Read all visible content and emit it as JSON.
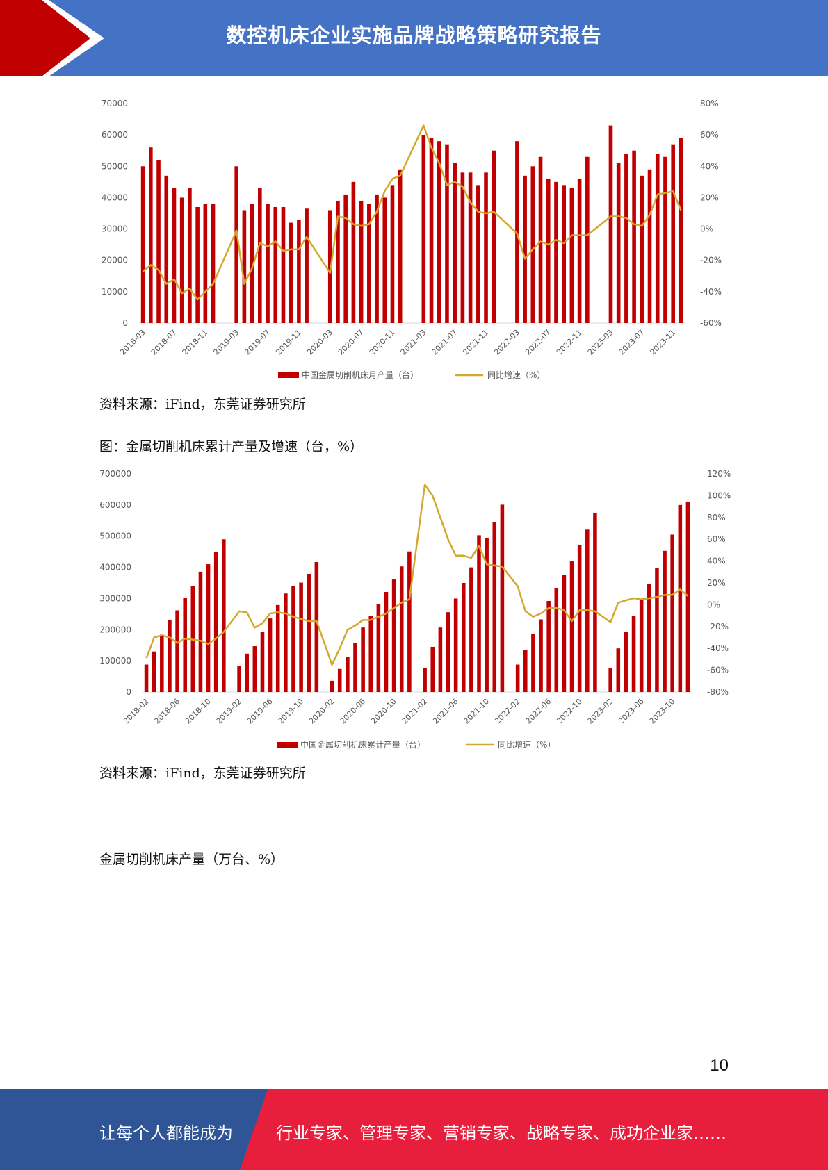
{
  "header": {
    "title": "数控机床企业实施品牌战略策略研究报告",
    "colors": {
      "blue": "#4472c4",
      "red": "#c00000"
    }
  },
  "charts": [
    {
      "type": "bar+line",
      "left_axis_ticks": [
        "70000",
        "60000",
        "50000",
        "40000",
        "30000",
        "20000",
        "10000",
        "0"
      ],
      "right_axis_ticks": [
        "80%",
        "60%",
        "40%",
        "20%",
        "0%",
        "-20%",
        "-40%",
        "-60%"
      ],
      "x_tick_labels": [
        "2018-03",
        "2018-07",
        "2018-11",
        "2019-03",
        "2019-07",
        "2019-11",
        "2020-03",
        "2020-07",
        "2020-11",
        "2021-03",
        "2021-07",
        "2021-11",
        "2022-03",
        "2022-07",
        "2022-11",
        "2023-03",
        "2023-07",
        "2023-11"
      ],
      "legend": [
        "中国金属切削机床月产量（台）",
        "同比增速（%）"
      ]
    },
    {
      "type": "bar+line",
      "left_axis_ticks": [
        "700000",
        "600000",
        "500000",
        "400000",
        "300000",
        "200000",
        "100000",
        "0"
      ],
      "right_axis_ticks": [
        "120%",
        "100%",
        "80%",
        "60%",
        "40%",
        "20%",
        "0%",
        "-20%",
        "-40%",
        "-60%",
        "-80%"
      ],
      "x_tick_labels": [
        "2018-02",
        "2018-06",
        "2018-10",
        "2019-02",
        "2019-06",
        "2019-10",
        "2020-02",
        "2020-06",
        "2020-10",
        "2021-02",
        "2021-06",
        "2021-10",
        "2022-02",
        "2022-06",
        "2022-10",
        "2023-02",
        "2023-06",
        "2023-10"
      ],
      "legend": [
        "中国金属切削机床累计产量（台）",
        "同比增速（%）"
      ]
    }
  ],
  "chart_data": [
    {
      "type": "bar",
      "series": [
        {
          "name": "中国金属切削机床月产量（台）",
          "color": "#c00000",
          "axis": "left",
          "values": [
            50000,
            56000,
            52000,
            47000,
            43000,
            40000,
            43000,
            37000,
            38000,
            38000,
            null,
            null,
            50000,
            36000,
            38000,
            43000,
            38000,
            37000,
            37000,
            32000,
            33000,
            36500,
            null,
            null,
            36000,
            39000,
            41000,
            45000,
            39000,
            38000,
            41000,
            40000,
            44000,
            49000,
            null,
            null,
            60000,
            59000,
            58000,
            57000,
            51000,
            48000,
            48000,
            44000,
            48000,
            55000,
            null,
            null,
            58000,
            47000,
            50000,
            53000,
            46000,
            45000,
            44000,
            43000,
            46000,
            53000,
            null,
            null,
            63000,
            51000,
            54000,
            55000,
            47000,
            49000,
            54000,
            53000,
            57000,
            59000
          ]
        },
        {
          "name": "同比增速（%）",
          "color": "#d4a82e",
          "axis": "right",
          "values": [
            -27,
            -23,
            -26,
            -35,
            -32,
            -41,
            -38,
            -45,
            -40,
            -35,
            null,
            null,
            -1,
            -35,
            -25,
            -9,
            -11,
            -8,
            -14,
            -13,
            -13,
            -5,
            null,
            null,
            -28,
            8,
            7,
            3,
            2,
            3,
            11,
            24,
            32,
            34,
            null,
            null,
            66,
            52,
            42,
            28,
            30,
            27,
            17,
            11,
            10,
            11,
            null,
            null,
            -3,
            -19,
            -13,
            -8,
            -10,
            -7,
            -9,
            -4,
            -4,
            -4,
            null,
            null,
            8,
            8,
            7,
            3,
            2,
            9,
            22,
            23,
            24,
            12
          ]
        }
      ],
      "x_start": "2018-03",
      "ylim_left": [
        0,
        70000
      ],
      "ylim_right": [
        -60,
        80
      ]
    },
    {
      "type": "bar",
      "series": [
        {
          "name": "中国金属切削机床累计产量（台）",
          "color": "#c00000",
          "axis": "left",
          "values": [
            88000,
            130000,
            184000,
            232000,
            262000,
            302000,
            340000,
            386000,
            410000,
            448000,
            490000,
            null,
            83000,
            123000,
            147000,
            192000,
            236000,
            279000,
            316000,
            339000,
            351000,
            379000,
            417000,
            null,
            36000,
            74000,
            113000,
            158000,
            207000,
            243000,
            283000,
            321000,
            361000,
            403000,
            451000,
            null,
            77000,
            145000,
            207000,
            256000,
            300000,
            350000,
            400000,
            503000,
            493000,
            545000,
            601000,
            null,
            88000,
            136000,
            186000,
            233000,
            292000,
            334000,
            376000,
            419000,
            472000,
            521000,
            573000,
            null,
            77000,
            140000,
            193000,
            244000,
            300000,
            347000,
            398000,
            453000,
            505000,
            600000,
            611000
          ]
        },
        {
          "name": "同比增速（%）",
          "color": "#d4a82e",
          "axis": "right",
          "values": [
            -49,
            -30,
            -28,
            -30,
            -35,
            -31,
            -32,
            -33,
            -36,
            -31,
            -25,
            null,
            -6,
            -7,
            -21,
            -17,
            -8,
            -7,
            -8,
            -11,
            -13,
            -15,
            -15,
            null,
            -55,
            -40,
            -23,
            -19,
            -14,
            -14,
            -11,
            -8,
            -3,
            2,
            5,
            null,
            110,
            100,
            80,
            60,
            45,
            45,
            43,
            54,
            37,
            36,
            35,
            null,
            17,
            -6,
            -11,
            -8,
            -3,
            -3,
            -5,
            -15,
            -5,
            -5,
            -6,
            null,
            -16,
            2,
            4,
            6,
            5,
            6,
            7,
            9,
            9,
            14,
            8
          ]
        }
      ],
      "x_start": "2018-02",
      "ylim_left": [
        0,
        700000
      ],
      "ylim_right": [
        -80,
        120
      ]
    }
  ],
  "body": {
    "source1": "资料来源：iFind，东莞证券研究所",
    "fig2_caption": "图：金属切削机床累计产量及增速（台，%）",
    "source2": "资料来源：iFind，东莞证券研究所",
    "section_caption": "金属切削机床产量（万台、%）"
  },
  "page_number": "10",
  "footer": {
    "left_text": "让每个人都能成为",
    "right_text": "行业专家、管理专家、营销专家、战略专家、成功企业家……",
    "colors": {
      "left": "#2f5597",
      "right": "#e81f3c"
    }
  }
}
